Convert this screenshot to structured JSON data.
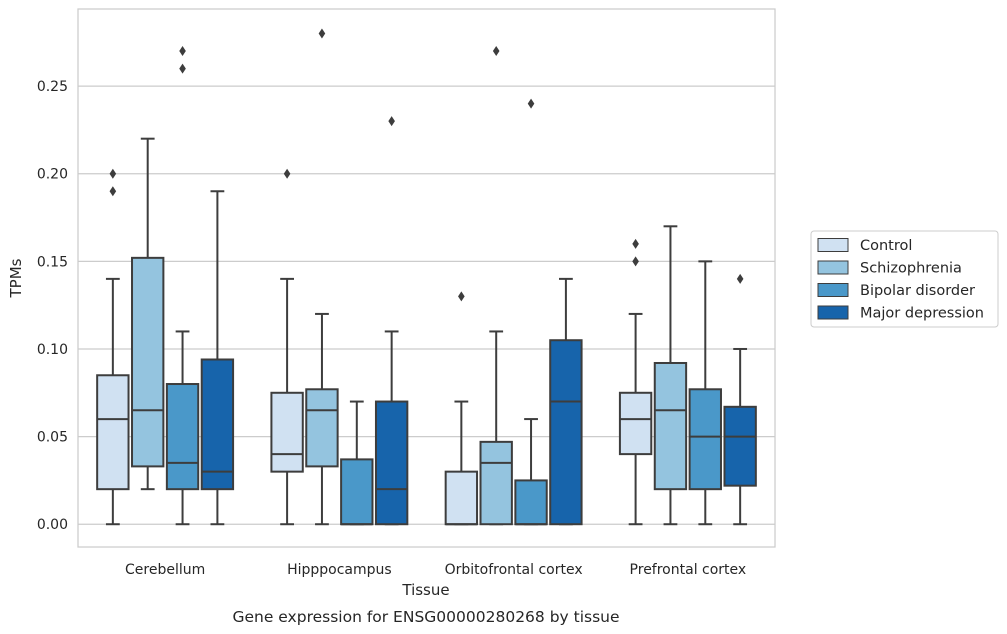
{
  "chart_data": {
    "type": "box",
    "caption": "Gene expression for ENSG00000280268 by tissue",
    "xlabel": "Tissue",
    "ylabel": "TPMs",
    "ylim": [
      -0.013,
      0.294
    ],
    "yticks": [
      0.0,
      0.05,
      0.1,
      0.15,
      0.2,
      0.25
    ],
    "ytick_labels": [
      "0.00",
      "0.05",
      "0.10",
      "0.15",
      "0.20",
      "0.25"
    ],
    "grid": true,
    "legend_position": "right",
    "categories": [
      "Cerebellum",
      "Hipppocampus",
      "Orbitofrontal cortex",
      "Prefrontal cortex"
    ],
    "series": [
      {
        "name": "Control",
        "color": "#d0e1f2",
        "boxes": [
          {
            "whislo": 0.0,
            "q1": 0.02,
            "med": 0.06,
            "q3": 0.085,
            "whishi": 0.14,
            "fliers": [
              0.19,
              0.2
            ]
          },
          {
            "whislo": 0.0,
            "q1": 0.03,
            "med": 0.04,
            "q3": 0.075,
            "whishi": 0.14,
            "fliers": [
              0.2
            ]
          },
          {
            "whislo": 0.0,
            "q1": 0.0,
            "med": 0.0,
            "q3": 0.03,
            "whishi": 0.07,
            "fliers": [
              0.13
            ]
          },
          {
            "whislo": 0.0,
            "q1": 0.04,
            "med": 0.06,
            "q3": 0.075,
            "whishi": 0.12,
            "fliers": [
              0.15,
              0.16
            ]
          }
        ]
      },
      {
        "name": "Schizophrenia",
        "color": "#94c4df",
        "boxes": [
          {
            "whislo": 0.02,
            "q1": 0.033,
            "med": 0.065,
            "q3": 0.152,
            "whishi": 0.22,
            "fliers": []
          },
          {
            "whislo": 0.0,
            "q1": 0.033,
            "med": 0.065,
            "q3": 0.077,
            "whishi": 0.12,
            "fliers": [
              0.28
            ]
          },
          {
            "whislo": 0.0,
            "q1": 0.0,
            "med": 0.035,
            "q3": 0.047,
            "whishi": 0.11,
            "fliers": [
              0.27
            ]
          },
          {
            "whislo": 0.0,
            "q1": 0.02,
            "med": 0.065,
            "q3": 0.092,
            "whishi": 0.17,
            "fliers": []
          }
        ]
      },
      {
        "name": "Bipolar disorder",
        "color": "#4a98c9",
        "boxes": [
          {
            "whislo": 0.0,
            "q1": 0.02,
            "med": 0.035,
            "q3": 0.08,
            "whishi": 0.11,
            "fliers": [
              0.26,
              0.27
            ]
          },
          {
            "whislo": 0.0,
            "q1": 0.0,
            "med": 0.0,
            "q3": 0.037,
            "whishi": 0.07,
            "fliers": []
          },
          {
            "whislo": 0.0,
            "q1": 0.0,
            "med": 0.0,
            "q3": 0.025,
            "whishi": 0.06,
            "fliers": [
              0.24
            ]
          },
          {
            "whislo": 0.0,
            "q1": 0.02,
            "med": 0.05,
            "q3": 0.077,
            "whishi": 0.15,
            "fliers": []
          }
        ]
      },
      {
        "name": "Major depression",
        "color": "#1764ab",
        "boxes": [
          {
            "whislo": 0.0,
            "q1": 0.02,
            "med": 0.03,
            "q3": 0.094,
            "whishi": 0.19,
            "fliers": []
          },
          {
            "whislo": 0.0,
            "q1": 0.0,
            "med": 0.02,
            "q3": 0.07,
            "whishi": 0.11,
            "fliers": [
              0.23
            ]
          },
          {
            "whislo": 0.0,
            "q1": 0.0,
            "med": 0.07,
            "q3": 0.105,
            "whishi": 0.14,
            "fliers": []
          },
          {
            "whislo": 0.0,
            "q1": 0.022,
            "med": 0.05,
            "q3": 0.067,
            "whishi": 0.1,
            "fliers": [
              0.14
            ]
          }
        ]
      }
    ]
  }
}
